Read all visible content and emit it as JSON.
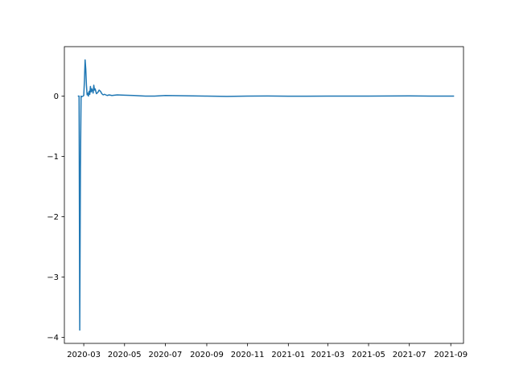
{
  "chart_data": {
    "type": "line",
    "title": "",
    "xlabel": "",
    "ylabel": "",
    "x_axis_kind": "date",
    "xlim": [
      "2020-02-01",
      "2021-09-20"
    ],
    "ylim": [
      -4.1,
      0.82
    ],
    "x_ticks": [
      "2020-03-01",
      "2020-05-01",
      "2020-07-01",
      "2020-09-01",
      "2020-11-01",
      "2021-01-01",
      "2021-03-01",
      "2021-05-01",
      "2021-07-01",
      "2021-09-01"
    ],
    "x_tick_labels": [
      "2020-03",
      "2020-05",
      "2020-07",
      "2020-09",
      "2020-11",
      "2021-01",
      "2021-03",
      "2021-05",
      "2021-07",
      "2021-09"
    ],
    "y_ticks": [
      0,
      -1,
      -2,
      -3,
      -4
    ],
    "y_tick_labels": [
      "0",
      "−1",
      "−2",
      "−3",
      "−4"
    ],
    "grid": false,
    "series": [
      {
        "color": "#1f77b4",
        "points": [
          [
            "2020-02-22",
            0.0
          ],
          [
            "2020-02-23",
            0.0
          ],
          [
            "2020-02-24",
            -3.88
          ],
          [
            "2020-02-25",
            -1.2
          ],
          [
            "2020-02-26",
            0.0
          ],
          [
            "2020-02-27",
            -0.01
          ],
          [
            "2020-02-29",
            0.0
          ],
          [
            "2020-03-01",
            0.01
          ],
          [
            "2020-03-02",
            0.25
          ],
          [
            "2020-03-03",
            0.6
          ],
          [
            "2020-03-04",
            0.45
          ],
          [
            "2020-03-05",
            0.18
          ],
          [
            "2020-03-06",
            0.02
          ],
          [
            "2020-03-07",
            0.05
          ],
          [
            "2020-03-08",
            0.0
          ],
          [
            "2020-03-09",
            0.08
          ],
          [
            "2020-03-10",
            0.03
          ],
          [
            "2020-03-11",
            0.16
          ],
          [
            "2020-03-12",
            0.07
          ],
          [
            "2020-03-13",
            0.12
          ],
          [
            "2020-03-14",
            0.09
          ],
          [
            "2020-03-15",
            0.05
          ],
          [
            "2020-03-16",
            0.18
          ],
          [
            "2020-03-17",
            0.1
          ],
          [
            "2020-03-18",
            0.12
          ],
          [
            "2020-03-20",
            0.04
          ],
          [
            "2020-03-22",
            0.06
          ],
          [
            "2020-03-24",
            0.1
          ],
          [
            "2020-03-26",
            0.08
          ],
          [
            "2020-03-28",
            0.04
          ],
          [
            "2020-03-30",
            0.02
          ],
          [
            "2020-04-01",
            0.03
          ],
          [
            "2020-04-05",
            0.01
          ],
          [
            "2020-04-08",
            0.02
          ],
          [
            "2020-04-12",
            0.01
          ],
          [
            "2020-04-20",
            0.02
          ],
          [
            "2020-05-01",
            0.015
          ],
          [
            "2020-05-15",
            0.01
          ],
          [
            "2020-06-01",
            0.0
          ],
          [
            "2020-06-15",
            0.0
          ],
          [
            "2020-07-01",
            0.01
          ],
          [
            "2020-08-01",
            0.005
          ],
          [
            "2020-09-01",
            0.0
          ],
          [
            "2020-10-01",
            -0.005
          ],
          [
            "2020-11-01",
            0.0
          ],
          [
            "2020-12-01",
            0.002
          ],
          [
            "2021-01-01",
            -0.002
          ],
          [
            "2021-03-01",
            0.0
          ],
          [
            "2021-05-01",
            0.0
          ],
          [
            "2021-07-01",
            0.003
          ],
          [
            "2021-08-01",
            0.0
          ],
          [
            "2021-09-05",
            0.0
          ]
        ]
      }
    ]
  }
}
